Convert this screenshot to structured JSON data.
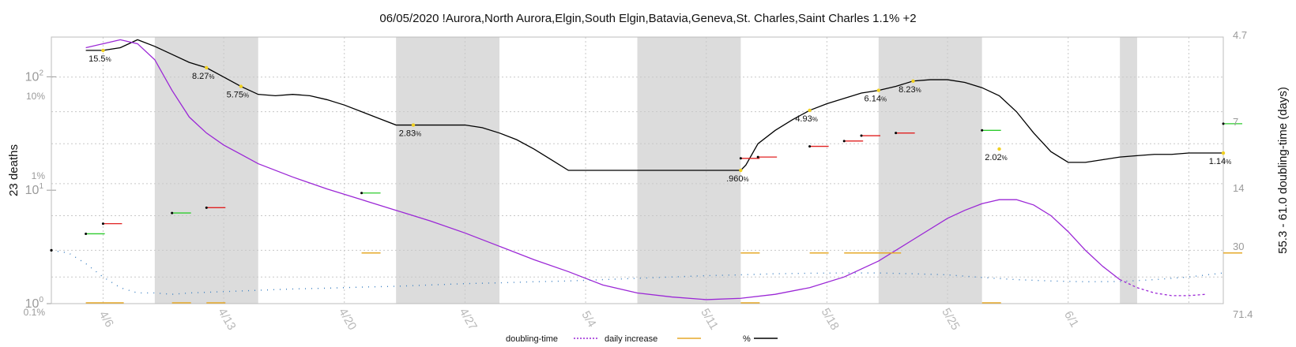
{
  "chart_data": {
    "type": "line",
    "title": "06/05/2020 !Aurora,North Aurora,Elgin,South Elgin,Batavia,Geneva,St. Charles,Saint Charles 1.1% +2",
    "ylabel_left": "23 deaths",
    "ylabel_right": "55.3 - 61.0 doubling-time (days)",
    "x_start": "4/3",
    "x_end": "6/5",
    "x_ticks": [
      {
        "label": "4/6",
        "day": 3
      },
      {
        "label": "4/13",
        "day": 10
      },
      {
        "label": "4/20",
        "day": 17
      },
      {
        "label": "4/27",
        "day": 24
      },
      {
        "label": "5/4",
        "day": 31
      },
      {
        "label": "5/11",
        "day": 38
      },
      {
        "label": "5/18",
        "day": 45
      },
      {
        "label": "5/25",
        "day": 52
      },
      {
        "label": "6/1",
        "day": 59
      }
    ],
    "y_left_ticks": [
      {
        "label": "10",
        "sup": "0",
        "value": 1
      },
      {
        "label": "10",
        "sup": "1",
        "value": 10
      },
      {
        "label": "10",
        "sup": "2",
        "value": 100
      }
    ],
    "y_left_pct_ticks": [
      {
        "label": "0.1%",
        "pos": 0.0
      },
      {
        "label": "1%",
        "pos": 0.527
      },
      {
        "label": "10%",
        "pos": 0.825
      }
    ],
    "y_right_ticks": [
      "4.7",
      "7",
      "14",
      "30",
      "71.4"
    ],
    "weekend_bands": [
      [
        6,
        12
      ],
      [
        20,
        26
      ],
      [
        34,
        40
      ],
      [
        48,
        54
      ],
      [
        62,
        63
      ]
    ],
    "series": [
      {
        "name": "%",
        "color": "#000000",
        "points": [
          [
            2,
            0.95
          ],
          [
            3,
            0.95
          ],
          [
            4,
            0.96
          ],
          [
            5,
            0.99
          ],
          [
            6,
            0.965
          ],
          [
            7,
            0.935
          ],
          [
            8,
            0.905
          ],
          [
            9,
            0.885
          ],
          [
            10,
            0.85
          ],
          [
            11,
            0.815
          ],
          [
            12,
            0.785
          ],
          [
            13,
            0.78
          ],
          [
            14,
            0.785
          ],
          [
            15,
            0.78
          ],
          [
            16,
            0.765
          ],
          [
            17,
            0.745
          ],
          [
            18,
            0.72
          ],
          [
            19,
            0.695
          ],
          [
            20,
            0.67
          ],
          [
            21,
            0.67
          ],
          [
            22,
            0.67
          ],
          [
            23,
            0.67
          ],
          [
            24,
            0.67
          ],
          [
            25,
            0.66
          ],
          [
            26,
            0.64
          ],
          [
            27,
            0.615
          ],
          [
            28,
            0.58
          ],
          [
            29,
            0.54
          ],
          [
            30,
            0.5
          ],
          [
            31,
            0.5
          ],
          [
            38,
            0.5
          ],
          [
            40,
            0.5
          ],
          [
            40.3,
            0.52
          ],
          [
            41,
            0.6
          ],
          [
            42,
            0.65
          ],
          [
            43,
            0.69
          ],
          [
            44,
            0.725
          ],
          [
            45,
            0.75
          ],
          [
            46,
            0.77
          ],
          [
            47,
            0.79
          ],
          [
            48,
            0.8
          ],
          [
            49,
            0.815
          ],
          [
            50,
            0.835
          ],
          [
            51,
            0.84
          ],
          [
            52,
            0.84
          ],
          [
            53,
            0.83
          ],
          [
            54,
            0.81
          ],
          [
            55,
            0.78
          ],
          [
            56,
            0.72
          ],
          [
            57,
            0.64
          ],
          [
            58,
            0.57
          ],
          [
            59,
            0.53
          ],
          [
            60,
            0.53
          ],
          [
            61,
            0.54
          ],
          [
            62,
            0.55
          ],
          [
            63,
            0.555
          ],
          [
            64,
            0.56
          ],
          [
            65,
            0.56
          ],
          [
            66,
            0.565
          ],
          [
            67,
            0.565
          ],
          [
            68,
            0.565
          ]
        ]
      },
      {
        "name": "doubling-time",
        "color": "#9b27d6",
        "points": [
          [
            2,
            0.96
          ],
          [
            3,
            0.975
          ],
          [
            4,
            0.99
          ],
          [
            5,
            0.975
          ],
          [
            6,
            0.915
          ],
          [
            7,
            0.8
          ],
          [
            8,
            0.7
          ],
          [
            9,
            0.64
          ],
          [
            10,
            0.595
          ],
          [
            11,
            0.56
          ],
          [
            12,
            0.525
          ],
          [
            14,
            0.475
          ],
          [
            16,
            0.43
          ],
          [
            18,
            0.39
          ],
          [
            20,
            0.35
          ],
          [
            22,
            0.31
          ],
          [
            24,
            0.265
          ],
          [
            26,
            0.215
          ],
          [
            28,
            0.165
          ],
          [
            30,
            0.12
          ],
          [
            32,
            0.07
          ],
          [
            34,
            0.04
          ],
          [
            36,
            0.025
          ],
          [
            38,
            0.015
          ],
          [
            40,
            0.02
          ],
          [
            42,
            0.035
          ],
          [
            44,
            0.06
          ],
          [
            46,
            0.1
          ],
          [
            48,
            0.16
          ],
          [
            50,
            0.24
          ],
          [
            52,
            0.32
          ],
          [
            53,
            0.35
          ],
          [
            54,
            0.375
          ],
          [
            55,
            0.39
          ],
          [
            56,
            0.39
          ],
          [
            57,
            0.37
          ],
          [
            58,
            0.33
          ],
          [
            59,
            0.27
          ],
          [
            60,
            0.2
          ],
          [
            61,
            0.14
          ],
          [
            62,
            0.09
          ],
          [
            63,
            0.06
          ],
          [
            64,
            0.04
          ],
          [
            65,
            0.03
          ],
          [
            66,
            0.03
          ],
          [
            67,
            0.035
          ]
        ],
        "dashed_from": 62
      },
      {
        "name": "trend",
        "color": "#3a7fc1",
        "style": "dotted",
        "points": [
          [
            0,
            0.2
          ],
          [
            1,
            0.19
          ],
          [
            2,
            0.15
          ],
          [
            3,
            0.1
          ],
          [
            4,
            0.06
          ],
          [
            5,
            0.04
          ],
          [
            6,
            0.04
          ],
          [
            7,
            0.035
          ],
          [
            8,
            0.04
          ],
          [
            10,
            0.045
          ],
          [
            12,
            0.05
          ],
          [
            14,
            0.055
          ],
          [
            16,
            0.058
          ],
          [
            18,
            0.062
          ],
          [
            20,
            0.065
          ],
          [
            22,
            0.07
          ],
          [
            24,
            0.075
          ],
          [
            26,
            0.078
          ],
          [
            28,
            0.082
          ],
          [
            30,
            0.085
          ],
          [
            32,
            0.09
          ],
          [
            34,
            0.095
          ],
          [
            36,
            0.1
          ],
          [
            38,
            0.105
          ],
          [
            40,
            0.108
          ],
          [
            42,
            0.112
          ],
          [
            44,
            0.114
          ],
          [
            46,
            0.115
          ],
          [
            48,
            0.115
          ],
          [
            50,
            0.112
          ],
          [
            52,
            0.108
          ],
          [
            54,
            0.098
          ],
          [
            56,
            0.09
          ],
          [
            58,
            0.085
          ],
          [
            60,
            0.082
          ],
          [
            62,
            0.083
          ],
          [
            64,
            0.09
          ],
          [
            66,
            0.1
          ],
          [
            68,
            0.115
          ]
        ]
      }
    ],
    "start_point": {
      "day": 0,
      "pos": 0.2
    },
    "annotations": [
      {
        "label": "15.5",
        "day": 3,
        "pos": 0.95
      },
      {
        "label": "8.27",
        "day": 9,
        "pos": 0.885
      },
      {
        "label": "5.75",
        "day": 11,
        "pos": 0.815
      },
      {
        "label": "2.83",
        "day": 21,
        "pos": 0.67
      },
      {
        "label": ".960",
        "day": 40,
        "pos": 0.5
      },
      {
        "label": "4.93",
        "day": 44,
        "pos": 0.725
      },
      {
        "label": "6.14",
        "day": 48,
        "pos": 0.8
      },
      {
        "label": "8.23",
        "day": 50,
        "pos": 0.835
      },
      {
        "label": "2.02",
        "day": 55,
        "pos": 0.58
      },
      {
        "label": "1.14",
        "day": 68,
        "pos": 0.565
      }
    ],
    "doubling_markers": [
      {
        "day": 2,
        "pos": 0.262,
        "color": "#2ecc2e"
      },
      {
        "day": 3,
        "pos": 0.3,
        "color": "#e02020"
      },
      {
        "day": 7,
        "pos": 0.34,
        "color": "#2ecc2e"
      },
      {
        "day": 9,
        "pos": 0.36,
        "color": "#e02020"
      },
      {
        "day": 18,
        "pos": 0.415,
        "color": "#2ecc2e"
      },
      {
        "day": 40,
        "pos": 0.545,
        "color": "#e02020"
      },
      {
        "day": 41,
        "pos": 0.55,
        "color": "#e02020"
      },
      {
        "day": 44,
        "pos": 0.59,
        "color": "#e02020"
      },
      {
        "day": 46,
        "pos": 0.61,
        "color": "#e02020"
      },
      {
        "day": 47,
        "pos": 0.63,
        "color": "#e02020"
      },
      {
        "day": 49,
        "pos": 0.64,
        "color": "#e02020"
      },
      {
        "day": 54,
        "pos": 0.65,
        "color": "#2ecc2e"
      },
      {
        "day": 68,
        "pos": 0.675,
        "color": "#2ecc2e"
      }
    ],
    "daily_increase": [
      {
        "day": 2,
        "value": 0,
        "width": 2
      },
      {
        "day": 7,
        "value": 0,
        "width": 1
      },
      {
        "day": 9,
        "value": 0,
        "width": 1
      },
      {
        "day": 18,
        "value": 1,
        "width": 1
      },
      {
        "day": 40,
        "value": 1,
        "width": 1
      },
      {
        "day": 40,
        "value": 0,
        "width": 1
      },
      {
        "day": 44,
        "value": 1,
        "width": 1
      },
      {
        "day": 46,
        "value": 1,
        "width": 3
      },
      {
        "day": 54,
        "value": 0,
        "width": 1
      },
      {
        "day": 68,
        "value": 1,
        "width": 1
      }
    ],
    "legend": [
      {
        "label": "doubling-time",
        "color": "#9b27d6",
        "style": "dotted"
      },
      {
        "label": "daily increase",
        "color": "#e6a92a",
        "style": "solid"
      },
      {
        "label": "%",
        "color": "#000000",
        "style": "solid"
      }
    ],
    "colors": {
      "weekend": "#dcdcdc",
      "grid": "#c8c8c8",
      "pct_line": "#000000",
      "doubling_line": "#9b27d6",
      "trend": "#3a7fc1",
      "daily": "#e6a92a",
      "point": "#f0d020"
    }
  }
}
